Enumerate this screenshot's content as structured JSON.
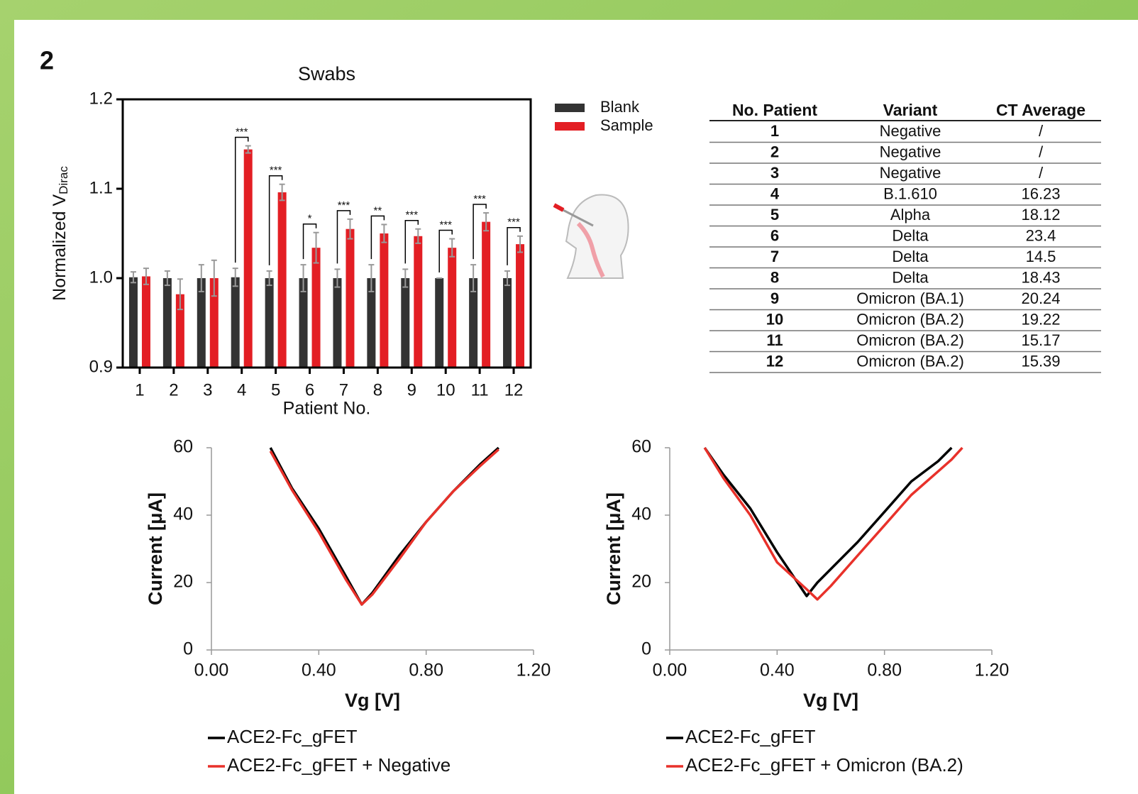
{
  "panel_label": "2",
  "chart_data": [
    {
      "type": "bar",
      "title": "Swabs",
      "xlabel": "Patient No.",
      "ylabel": "Normalized V",
      "ylabel_subscript": "Dirac",
      "categories": [
        "1",
        "2",
        "3",
        "4",
        "5",
        "6",
        "7",
        "8",
        "9",
        "10",
        "11",
        "12"
      ],
      "series": [
        {
          "name": "Blank",
          "color": "#333333",
          "values": [
            1.001,
            1.0,
            1.0,
            1.001,
            1.0,
            1.0,
            1.0,
            1.0,
            1.0,
            1.0,
            1.0,
            1.0
          ],
          "errors": [
            0.006,
            0.008,
            0.015,
            0.01,
            0.008,
            0.015,
            0.01,
            0.015,
            0.01,
            0,
            0.015,
            0.008
          ]
        },
        {
          "name": "Sample",
          "color": "#e31e24",
          "values": [
            1.002,
            0.982,
            1.0,
            1.144,
            1.096,
            1.034,
            1.055,
            1.05,
            1.047,
            1.034,
            1.063,
            1.038
          ],
          "errors": [
            0.009,
            0.017,
            0.02,
            0.004,
            0.009,
            0.017,
            0.011,
            0.01,
            0.008,
            0.01,
            0.01,
            0.009
          ]
        }
      ],
      "annotations": [
        null,
        null,
        null,
        "***",
        "***",
        "*",
        "***",
        "**",
        "***",
        "***",
        "***",
        "***"
      ],
      "ylim": [
        0.9,
        1.2
      ],
      "yticks": [
        0.9,
        {
          "value": 1,
          "label": "1.0"
        },
        1.1,
        1.2
      ]
    },
    {
      "type": "line",
      "xlabel": "Vg [V]",
      "ylabel": "Current [μA]",
      "x": [
        0.22,
        0.3,
        0.4,
        0.5,
        0.56,
        0.6,
        0.7,
        0.8,
        0.9,
        1.0,
        1.07
      ],
      "series": [
        {
          "name": "ACE2-Fc_gFET",
          "color": "#000000",
          "values": [
            60,
            48,
            36,
            22,
            13.5,
            17,
            28,
            38,
            47,
            55,
            60
          ]
        },
        {
          "name": "ACE2-Fc_gFET + Negative",
          "color": "#e8312a",
          "values": [
            59,
            47.5,
            35,
            21,
            13.5,
            16.5,
            27,
            38,
            47,
            54.5,
            59.5
          ]
        }
      ],
      "xlim": [
        0,
        1.2
      ],
      "ylim": [
        0,
        60
      ],
      "xticks": [
        {
          "value": 0,
          "label": "0.00"
        },
        {
          "value": 0.4,
          "label": "0.40"
        },
        {
          "value": 0.8,
          "label": "0.80"
        },
        {
          "value": 1.2,
          "label": "1.20"
        }
      ],
      "yticks": [
        0,
        20,
        40,
        60
      ]
    },
    {
      "type": "line",
      "xlabel": "Vg [V]",
      "ylabel": "Current [μA]",
      "x": [
        0.13,
        0.2,
        0.3,
        0.4,
        0.51,
        0.55,
        0.6,
        0.7,
        0.8,
        0.9,
        1.0,
        1.05,
        1.09
      ],
      "series": [
        {
          "name": "ACE2-Fc_gFET",
          "color": "#000000",
          "values": [
            60,
            52,
            42,
            29,
            16,
            20,
            24,
            32,
            41,
            50,
            56,
            60,
            null
          ]
        },
        {
          "name": "ACE2-Fc_gFET + Omicron (BA.2)",
          "color": "#e8312a",
          "values": [
            60,
            51,
            40,
            26,
            18,
            15,
            19,
            28,
            37,
            46,
            53,
            56.5,
            60
          ]
        }
      ],
      "xlim": [
        0,
        1.2
      ],
      "ylim": [
        0,
        60
      ],
      "xticks": [
        {
          "value": 0,
          "label": "0.00"
        },
        {
          "value": 0.4,
          "label": "0.40"
        },
        {
          "value": 0.8,
          "label": "0.80"
        },
        {
          "value": 1.2,
          "label": "1.20"
        }
      ],
      "yticks": [
        0,
        20,
        40,
        60
      ]
    }
  ],
  "table": {
    "header": [
      "No. Patient",
      "Variant",
      "CT Average"
    ],
    "rows": [
      [
        "1",
        "Negative",
        "/"
      ],
      [
        "2",
        "Negative",
        "/"
      ],
      [
        "3",
        "Negative",
        "/"
      ],
      [
        "4",
        "B.1.610",
        "16.23"
      ],
      [
        "5",
        "Alpha",
        "18.12"
      ],
      [
        "6",
        "Delta",
        "23.4"
      ],
      [
        "7",
        "Delta",
        "14.5"
      ],
      [
        "8",
        "Delta",
        "18.43"
      ],
      [
        "9",
        "Omicron (BA.1)",
        "20.24"
      ],
      [
        "10",
        "Omicron (BA.2)",
        "19.22"
      ],
      [
        "11",
        "Omicron (BA.2)",
        "15.17"
      ],
      [
        "12",
        "Omicron (BA.2)",
        "15.39"
      ]
    ]
  }
}
